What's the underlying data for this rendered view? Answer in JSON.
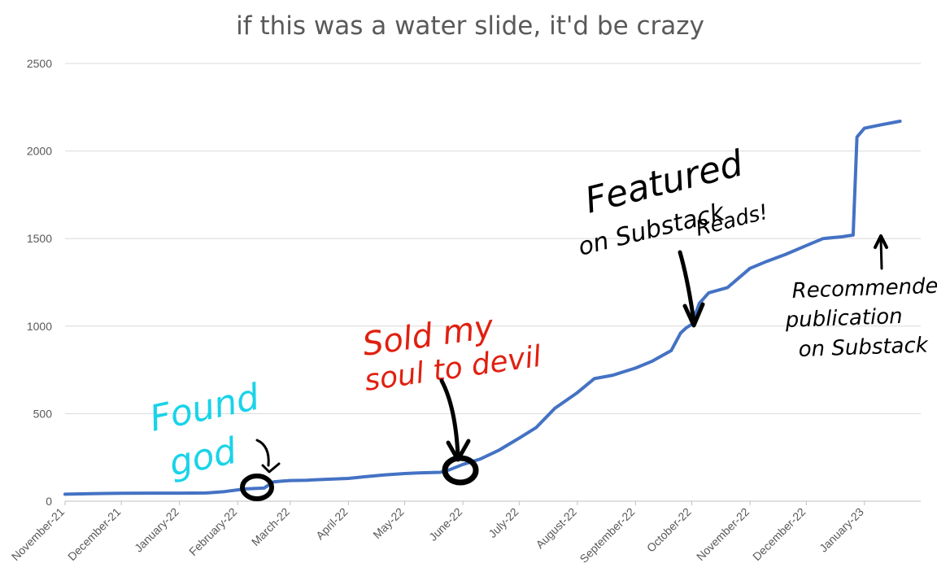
{
  "chart_data": {
    "type": "line",
    "title": "if this was a water slide, it'd be crazy",
    "xlabel": "",
    "ylabel": "",
    "ylim": [
      0,
      2500
    ],
    "yticks": [
      0,
      500,
      1000,
      1500,
      2000,
      2500
    ],
    "xticks": [
      "November-21",
      "December-21",
      "January-22",
      "February-22",
      "March-22",
      "April-22",
      "May-22",
      "June-22",
      "July-22",
      "August-22",
      "September-22",
      "October-22",
      "November-22",
      "December-22",
      "January-23"
    ],
    "xlim": [
      "2021-11-01",
      "2023-01-31"
    ],
    "grid": true,
    "legend": "none",
    "colors": {
      "series": "#4472c4",
      "annotation_cyan": "#19d3e9",
      "annotation_red": "#e02010",
      "annotation_black": "#000000"
    },
    "series": [
      {
        "x": [
          "2021-11-01",
          "2021-11-15",
          "2021-12-01",
          "2021-12-15",
          "2022-01-01",
          "2022-01-15",
          "2022-01-25",
          "2022-02-05",
          "2022-02-15",
          "2022-02-20",
          "2022-02-25",
          "2022-03-01",
          "2022-03-10",
          "2022-03-20",
          "2022-04-01",
          "2022-04-10",
          "2022-04-20",
          "2022-05-01",
          "2022-05-10",
          "2022-05-20",
          "2022-05-25",
          "2022-06-01",
          "2022-06-10",
          "2022-06-20",
          "2022-07-01",
          "2022-07-10",
          "2022-07-20",
          "2022-08-01",
          "2022-08-10",
          "2022-08-20",
          "2022-09-01",
          "2022-09-10",
          "2022-09-20",
          "2022-09-25",
          "2022-09-28",
          "2022-10-01",
          "2022-10-05",
          "2022-10-10",
          "2022-10-20",
          "2022-11-01",
          "2022-11-10",
          "2022-11-20",
          "2022-12-01",
          "2022-12-10",
          "2022-12-20",
          "2022-12-26",
          "2022-12-28",
          "2023-01-01",
          "2023-01-10",
          "2023-01-20"
        ],
        "y": [
          40,
          43,
          45,
          46,
          46,
          47,
          55,
          70,
          75,
          110,
          115,
          118,
          120,
          125,
          130,
          140,
          150,
          158,
          162,
          165,
          180,
          210,
          240,
          290,
          360,
          420,
          530,
          620,
          700,
          720,
          760,
          800,
          860,
          960,
          990,
          1010,
          1130,
          1190,
          1220,
          1330,
          1370,
          1410,
          1460,
          1500,
          1510,
          1520,
          2080,
          2130,
          2150,
          2170
        ]
      }
    ],
    "annotations": [
      {
        "text": "Found god",
        "lines": [
          "Found",
          "god"
        ]
      },
      {
        "text": "Sold my soul to devil",
        "lines": [
          "Sold my",
          "soul to devil"
        ]
      },
      {
        "text": "Featured on Substack Reads!",
        "lines": [
          "Featured",
          "on Substack",
          "Reads!"
        ]
      },
      {
        "text": "Recommended publication on Substack",
        "lines": [
          "Recommended",
          "publication",
          "on Substack"
        ]
      }
    ]
  }
}
